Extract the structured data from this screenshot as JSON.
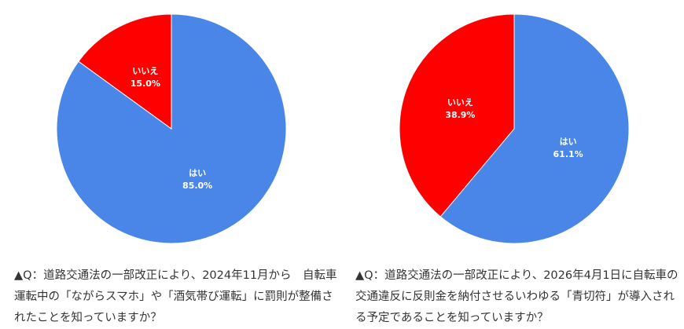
{
  "chart_data": [
    {
      "type": "pie",
      "categories": [
        "はい",
        "いいえ"
      ],
      "values": [
        85.0,
        15.0
      ],
      "value_labels": [
        "85.0%",
        "15.0%"
      ],
      "colors": [
        "#4a86e8",
        "#ff0000"
      ],
      "caption": "▲Q：道路交通法の一部改正により、2024年11月から　自転車運転中の「ながらスマホ」や「酒気帯び運転」に罰則が整備されたことを知っていますか？"
    },
    {
      "type": "pie",
      "categories": [
        "はい",
        "いいえ"
      ],
      "values": [
        61.1,
        38.9
      ],
      "value_labels": [
        "61.1%",
        "38.9%"
      ],
      "colors": [
        "#4a86e8",
        "#ff0000"
      ],
      "caption": "▲Q：道路交通法の一部改正により、2026年4月1日に自転車の交通違反に反則金を納付させるいわゆる「青切符」が導入される予定であることを知っていますか？"
    }
  ]
}
